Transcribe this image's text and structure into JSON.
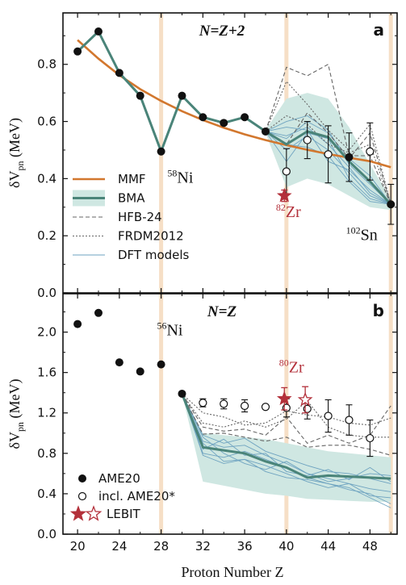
{
  "figure": {
    "x_label": "Proton Number  Z"
  },
  "colors": {
    "mmf": "#d2772e",
    "bma": "#4a8479",
    "band": "#cfe7e2",
    "dft": "#6ea3c0",
    "hfb": "#666666",
    "frdm": "#666666",
    "lebit": "#b3303a",
    "vline": "#f6dfc6",
    "exp": "#111111"
  },
  "chart_data": [
    {
      "type": "line",
      "panel_letter": "a",
      "title": "N=Z+2",
      "ylabel_main": "δV",
      "ylabel_sub": "pn",
      "ylabel_unit": " (MeV)",
      "xlim": [
        18.6,
        50.6
      ],
      "ylim": [
        0.0,
        0.98
      ],
      "xticks": [
        20,
        24,
        28,
        32,
        36,
        40,
        44,
        48
      ],
      "xticks_minor": [
        22,
        26,
        30,
        34,
        38,
        42,
        46,
        50
      ],
      "yticks": [
        0.0,
        0.2,
        0.4,
        0.6,
        0.8
      ],
      "ytick_labels": [
        "0.0",
        "0.2",
        "0.4",
        "0.6",
        "0.8"
      ],
      "vlines": [
        28,
        40,
        50
      ],
      "ame20": {
        "x": [
          20,
          22,
          24,
          26,
          28,
          30,
          32,
          34,
          36,
          38,
          46,
          50
        ],
        "y": [
          0.845,
          0.915,
          0.77,
          0.69,
          0.495,
          0.69,
          0.615,
          0.595,
          0.615,
          0.565,
          0.475,
          0.31
        ]
      },
      "ame20_err": [
        0,
        0,
        0,
        0,
        0,
        0,
        0,
        0,
        0,
        0,
        0.085,
        0.07
      ],
      "ame20star": {
        "x": [
          40,
          42,
          44,
          48
        ],
        "y": [
          0.425,
          0.535,
          0.485,
          0.495
        ],
        "err": [
          0.08,
          0.065,
          0.1,
          0.1
        ]
      },
      "lebit": {
        "x": [
          39.8
        ],
        "y": [
          0.34
        ],
        "err": [
          0.02
        ],
        "filled": [
          true
        ]
      },
      "mmf": {
        "x": [
          20,
          22,
          24,
          26,
          28,
          30,
          32,
          34,
          36,
          38,
          40,
          42,
          44,
          46,
          48,
          50
        ],
        "y": [
          0.885,
          0.82,
          0.762,
          0.713,
          0.672,
          0.636,
          0.605,
          0.578,
          0.555,
          0.535,
          0.517,
          0.501,
          0.486,
          0.473,
          0.461,
          0.44
        ]
      },
      "bma": {
        "x": [
          20,
          22,
          24,
          26,
          28,
          30,
          32,
          34,
          36,
          38,
          40,
          42,
          44,
          46,
          48,
          50
        ],
        "y": [
          0.845,
          0.915,
          0.77,
          0.69,
          0.495,
          0.69,
          0.615,
          0.595,
          0.615,
          0.565,
          0.52,
          0.565,
          0.545,
          0.46,
          0.39,
          0.31
        ]
      },
      "band": {
        "x": [
          38,
          40,
          42,
          44,
          46,
          48,
          50
        ],
        "low": [
          0.56,
          0.37,
          0.4,
          0.38,
          0.34,
          0.3,
          0.29
        ],
        "high": [
          0.57,
          0.68,
          0.7,
          0.68,
          0.58,
          0.45,
          0.33
        ]
      },
      "hfb24": [
        {
          "x": [
            38,
            40,
            42,
            44,
            46,
            48,
            50
          ],
          "y": [
            0.565,
            0.79,
            0.76,
            0.8,
            0.48,
            0.48,
            0.31
          ]
        },
        {
          "x": [
            38,
            40,
            42,
            44,
            46,
            48,
            50
          ],
          "y": [
            0.565,
            0.52,
            0.63,
            0.56,
            0.47,
            0.56,
            0.31
          ]
        }
      ],
      "frdm2012": [
        {
          "x": [
            38,
            40,
            42,
            44,
            46,
            48,
            50
          ],
          "y": [
            0.565,
            0.74,
            0.66,
            0.57,
            0.5,
            0.59,
            0.31
          ]
        },
        {
          "x": [
            38,
            40,
            42,
            44,
            46,
            48,
            50
          ],
          "y": [
            0.565,
            0.62,
            0.59,
            0.52,
            0.49,
            0.52,
            0.31
          ]
        }
      ],
      "dft": [
        {
          "x": [
            38,
            40,
            42,
            44,
            46,
            48,
            50
          ],
          "y": [
            0.565,
            0.6,
            0.62,
            0.57,
            0.45,
            0.38,
            0.31
          ]
        },
        {
          "x": [
            38,
            40,
            42,
            44,
            46,
            48,
            50
          ],
          "y": [
            0.565,
            0.55,
            0.58,
            0.52,
            0.44,
            0.35,
            0.31
          ]
        },
        {
          "x": [
            38,
            40,
            42,
            44,
            46,
            48,
            50
          ],
          "y": [
            0.565,
            0.5,
            0.55,
            0.5,
            0.42,
            0.34,
            0.31
          ]
        },
        {
          "x": [
            38,
            40,
            42,
            44,
            46,
            48,
            50
          ],
          "y": [
            0.565,
            0.46,
            0.56,
            0.54,
            0.4,
            0.33,
            0.31
          ]
        },
        {
          "x": [
            38,
            40,
            42,
            44,
            46,
            48,
            50
          ],
          "y": [
            0.565,
            0.58,
            0.57,
            0.46,
            0.43,
            0.36,
            0.31
          ]
        },
        {
          "x": [
            38,
            40,
            42,
            44,
            46,
            48,
            50
          ],
          "y": [
            0.565,
            0.52,
            0.51,
            0.48,
            0.39,
            0.32,
            0.31
          ]
        },
        {
          "x": [
            38,
            40,
            42,
            44,
            46,
            48,
            50
          ],
          "y": [
            0.565,
            0.54,
            0.6,
            0.56,
            0.47,
            0.41,
            0.31
          ]
        }
      ],
      "annotations": [
        {
          "sup": "58",
          "main": "Ni",
          "x": 28.6,
          "y": 0.385,
          "color": "#111111"
        },
        {
          "sup": "82",
          "main": "Zr",
          "x": 39.0,
          "y": 0.265,
          "color": "#b3303a"
        },
        {
          "sup": "102",
          "main": "Sn",
          "x": 45.7,
          "y": 0.185,
          "color": "#111111"
        }
      ],
      "legend": {
        "position": "lower-left",
        "entries": [
          "MMF",
          "BMA",
          "HFB-24",
          "FRDM2012",
          "DFT models"
        ]
      }
    },
    {
      "type": "line",
      "panel_letter": "b",
      "title": "N=Z",
      "ylabel_main": "δV",
      "ylabel_sub": "pn",
      "ylabel_unit": " (MeV)",
      "xlim": [
        18.6,
        50.6
      ],
      "ylim": [
        0.0,
        2.38
      ],
      "xticks": [
        20,
        24,
        28,
        32,
        36,
        40,
        44,
        48
      ],
      "xticks_minor": [
        22,
        26,
        30,
        34,
        38,
        42,
        46,
        50
      ],
      "yticks": [
        0.0,
        0.4,
        0.8,
        1.2,
        1.6,
        2.0
      ],
      "ytick_labels": [
        "0.0",
        "0.4",
        "0.8",
        "1.2",
        "1.6",
        "2.0"
      ],
      "vlines": [
        28,
        40,
        50
      ],
      "ame20": {
        "x": [
          20,
          22,
          24,
          26,
          28,
          30
        ],
        "y": [
          2.08,
          2.19,
          1.7,
          1.61,
          1.68,
          1.39
        ]
      },
      "ame20_err": [
        0,
        0,
        0,
        0,
        0,
        0
      ],
      "ame20star": {
        "x": [
          32,
          34,
          36,
          38,
          40,
          42,
          44,
          46,
          48
        ],
        "y": [
          1.3,
          1.29,
          1.27,
          1.26,
          1.25,
          1.24,
          1.17,
          1.13,
          0.95
        ],
        "err": [
          0.04,
          0.05,
          0.06,
          0.02,
          0.09,
          0.1,
          0.16,
          0.15,
          0.18
        ]
      },
      "lebit": {
        "x": [
          39.8,
          41.8
        ],
        "y": [
          1.34,
          1.33
        ],
        "err": [
          0.11,
          0.13
        ],
        "filled": [
          true,
          false
        ]
      },
      "bma": {
        "x": [
          30,
          32,
          34,
          36,
          38,
          40,
          42,
          44,
          46,
          48,
          50
        ],
        "y": [
          1.39,
          0.86,
          0.83,
          0.8,
          0.72,
          0.66,
          0.56,
          0.58,
          0.57,
          0.56,
          0.55
        ]
      },
      "band": {
        "x": [
          30,
          32,
          34,
          36,
          38,
          40,
          42,
          44,
          46,
          48,
          50
        ],
        "low": [
          1.39,
          0.52,
          0.48,
          0.44,
          0.4,
          0.38,
          0.35,
          0.34,
          0.33,
          0.32,
          0.32
        ],
        "high": [
          1.39,
          1.0,
          0.98,
          0.96,
          0.94,
          0.9,
          0.86,
          0.82,
          0.8,
          0.78,
          0.76
        ]
      },
      "hfb24": [
        {
          "x": [
            30,
            32,
            34,
            36,
            38,
            40,
            42,
            44,
            46,
            48,
            50
          ],
          "y": [
            1.39,
            1.06,
            1.02,
            1.04,
            0.98,
            1.16,
            0.9,
            0.98,
            0.9,
            0.98,
            1.27
          ]
        },
        {
          "x": [
            30,
            32,
            34,
            36,
            38,
            40,
            42,
            44,
            46,
            48,
            50
          ],
          "y": [
            1.39,
            0.99,
            1.0,
            0.96,
            0.92,
            0.96,
            0.86,
            0.88,
            0.88,
            0.84,
            0.78
          ]
        }
      ],
      "frdm2012": [
        {
          "x": [
            30,
            32,
            34,
            36,
            38,
            40,
            42,
            44,
            46,
            48,
            50
          ],
          "y": [
            1.39,
            1.2,
            1.16,
            1.08,
            1.1,
            1.22,
            1.18,
            1.16,
            1.1,
            1.08,
            1.15
          ]
        },
        {
          "x": [
            30,
            32,
            34,
            36,
            38,
            40,
            42,
            44,
            46,
            48,
            50
          ],
          "y": [
            1.39,
            1.1,
            1.06,
            1.12,
            1.06,
            1.14,
            1.32,
            1.06,
            0.98,
            0.96,
            0.96
          ]
        }
      ],
      "dft": [
        {
          "x": [
            30,
            32,
            34,
            36,
            38,
            40,
            42,
            44,
            46,
            48,
            50
          ],
          "y": [
            1.39,
            0.98,
            0.9,
            0.95,
            0.82,
            0.75,
            0.68,
            0.62,
            0.6,
            0.55,
            0.5
          ]
        },
        {
          "x": [
            30,
            32,
            34,
            36,
            38,
            40,
            42,
            44,
            46,
            48,
            50
          ],
          "y": [
            1.39,
            0.92,
            0.86,
            0.88,
            0.78,
            0.7,
            0.6,
            0.55,
            0.5,
            0.45,
            0.42
          ]
        },
        {
          "x": [
            30,
            32,
            34,
            36,
            38,
            40,
            42,
            44,
            46,
            48,
            50
          ],
          "y": [
            1.39,
            0.8,
            0.76,
            0.82,
            0.74,
            0.66,
            0.56,
            0.5,
            0.44,
            0.4,
            0.3
          ]
        },
        {
          "x": [
            30,
            32,
            34,
            36,
            38,
            40,
            42,
            44,
            46,
            48,
            50
          ],
          "y": [
            1.39,
            0.9,
            0.72,
            0.74,
            0.68,
            0.6,
            0.52,
            0.46,
            0.5,
            0.38,
            0.36
          ]
        },
        {
          "x": [
            30,
            32,
            34,
            36,
            38,
            40,
            42,
            44,
            46,
            48,
            50
          ],
          "y": [
            1.39,
            0.96,
            0.8,
            0.7,
            0.64,
            0.72,
            0.6,
            0.52,
            0.55,
            0.6,
            0.58
          ]
        },
        {
          "x": [
            30,
            32,
            34,
            36,
            38,
            40,
            42,
            44,
            46,
            48,
            50
          ],
          "y": [
            1.39,
            0.84,
            0.94,
            0.78,
            0.8,
            0.62,
            0.58,
            0.64,
            0.54,
            0.66,
            0.52
          ]
        },
        {
          "x": [
            30,
            32,
            34,
            36,
            38,
            40,
            42,
            44,
            46,
            48,
            50
          ],
          "y": [
            1.39,
            0.78,
            0.7,
            0.74,
            0.62,
            0.56,
            0.54,
            0.5,
            0.46,
            0.36,
            0.26
          ]
        }
      ],
      "annotations": [
        {
          "sup": "56",
          "main": "Ni",
          "x": 27.6,
          "y": 1.97,
          "color": "#111111"
        },
        {
          "sup": "80",
          "main": "Zr",
          "x": 39.3,
          "y": 1.6,
          "color": "#b3303a"
        }
      ],
      "legend": {
        "position": "lower-left",
        "entries": [
          "AME20",
          "incl. AME20*",
          "LEBIT"
        ]
      }
    }
  ]
}
